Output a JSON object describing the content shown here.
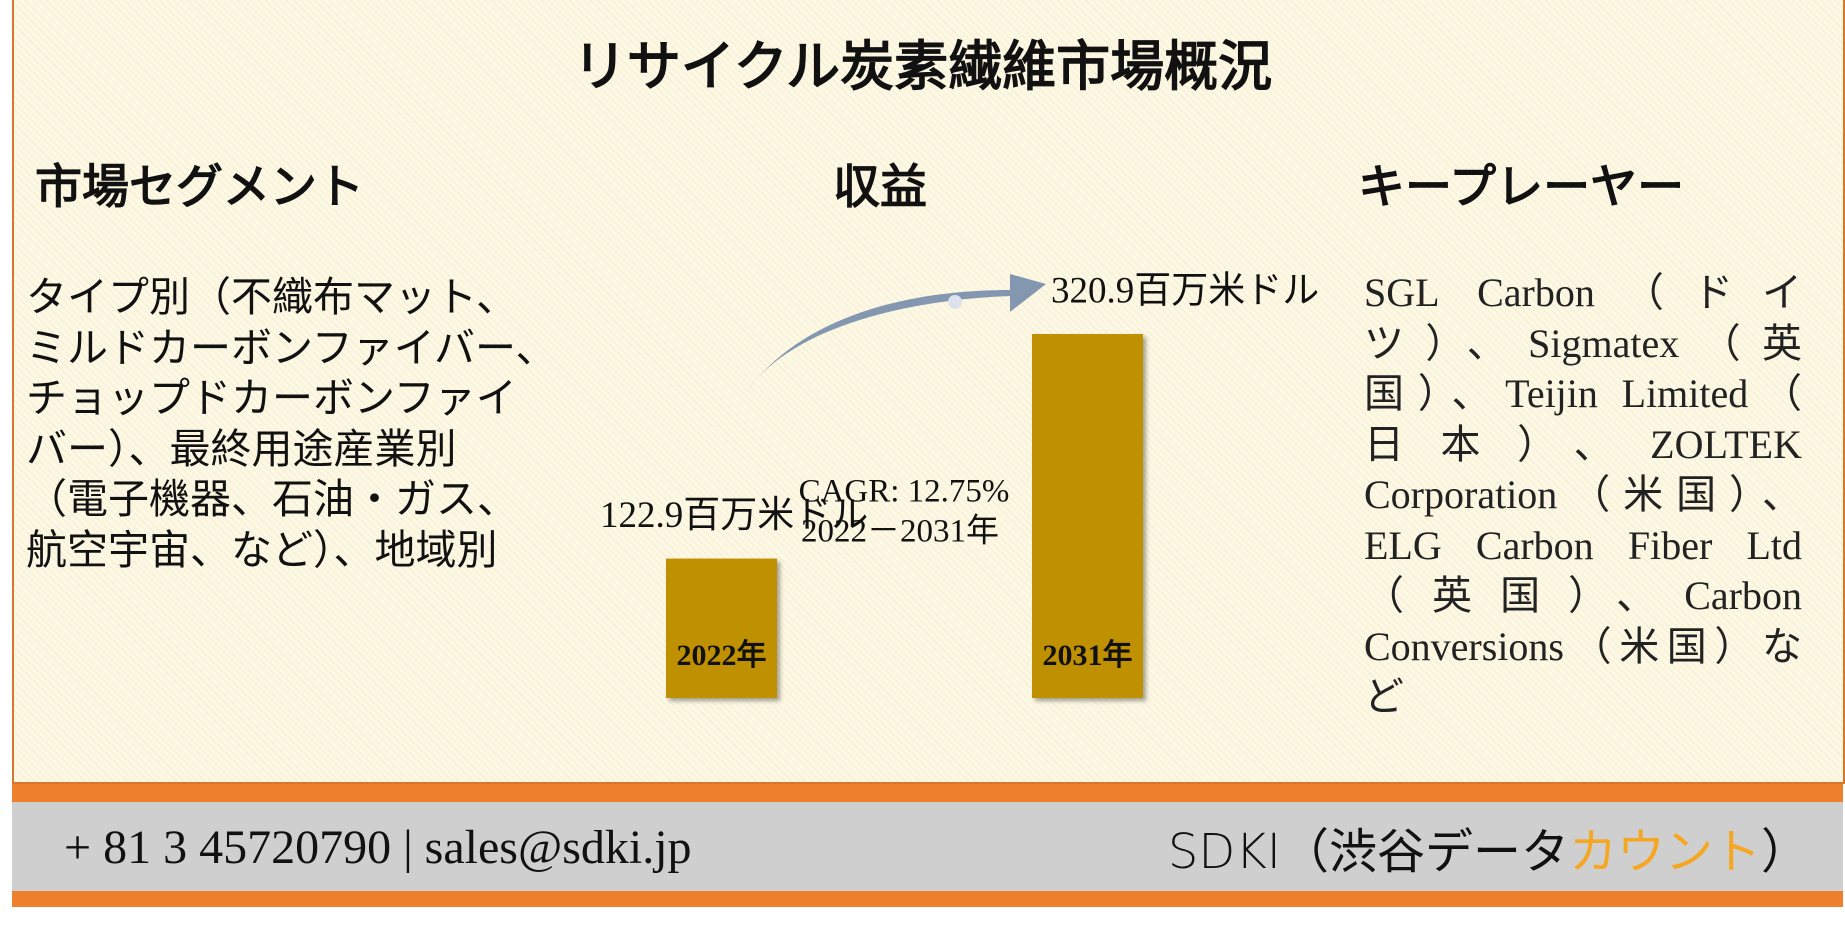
{
  "title": "リサイクル炭素繊維市場概況",
  "segments": {
    "heading": "市場セグメント",
    "lines": [
      "タイプ別（不織布マット、",
      "ミルドカーボンファイバー、",
      "チョップドカーボンファイ",
      "バー）、最終用途産業別",
      "（電子機器、石油・ガス、",
      "航空宇宙、など）、地域別"
    ]
  },
  "key_players": {
    "heading": "キープレーヤー",
    "lines": [
      "SGL Carbon（ドイ",
      "ツ）、Sigmatex（英",
      "国）、Teijin Limited（",
      "日本）、ZOLTEK",
      "Corporation（米国）、",
      "ELG Carbon Fiber Ltd",
      "（英国）、Carbon",
      "Conversions（米国）な",
      "ど"
    ]
  },
  "chart_data": {
    "type": "bar",
    "title": "収益",
    "categories": [
      "2022年",
      "2031年"
    ],
    "values": [
      122.9,
      320.9
    ],
    "value_labels": [
      "122.9百万米ドル",
      "320.9百万米ドル"
    ],
    "color": "#bf9000",
    "annotations": [
      "CAGR: 12.75%",
      "2022－2031年"
    ]
  },
  "footer": {
    "contact": "+ 81 3 45720790 | sales@sdki.jp",
    "brand": [
      "SDKI（渋谷データ",
      "カウント",
      "）"
    ]
  }
}
